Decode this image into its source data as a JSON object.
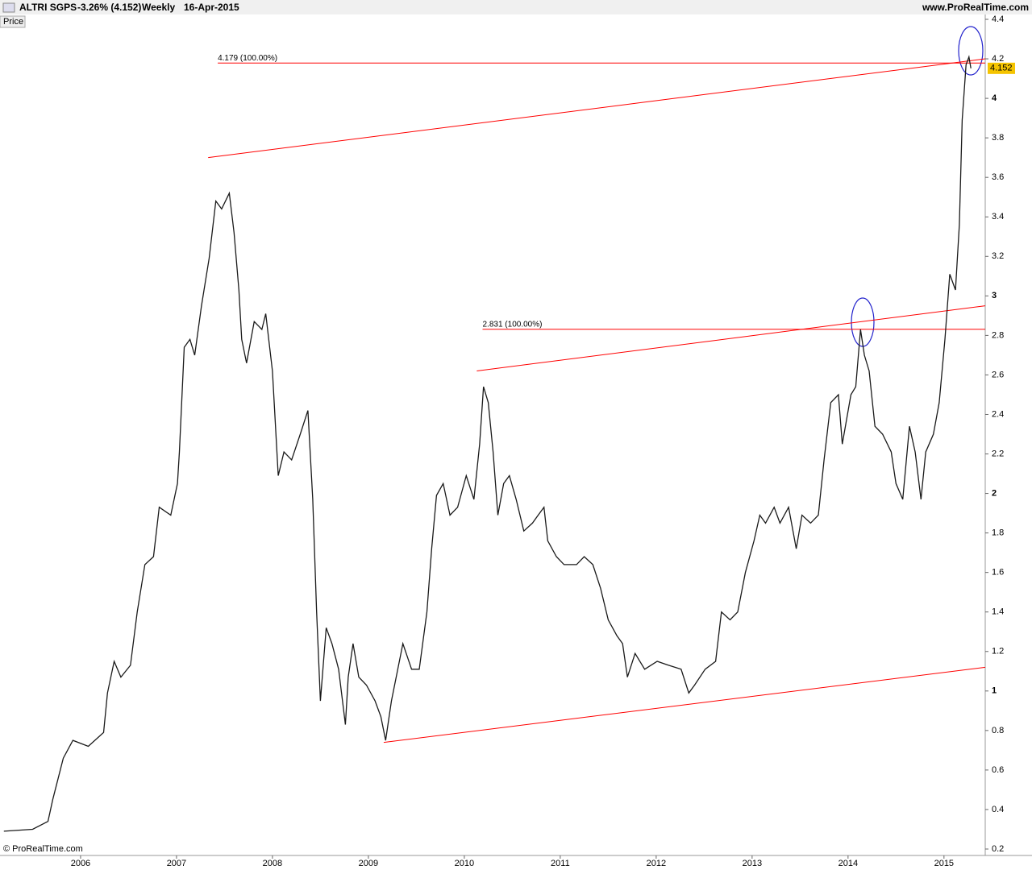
{
  "header": {
    "symbol": "ALTRI SGPS",
    "change": "-3.26% (4.152)",
    "period": "Weekly",
    "date": "16-Apr-2015",
    "site": "www.ProRealTime.com",
    "panel": "Price",
    "copyright": "© ProRealTime.com"
  },
  "chart_data": {
    "type": "line",
    "color": "#1a1a1a",
    "last_price": 4.152,
    "x": [
      2005.2,
      2005.5,
      2005.66,
      2005.71,
      2005.82,
      2005.92,
      2006.08,
      2006.24,
      2006.28,
      2006.35,
      2006.42,
      2006.52,
      2006.59,
      2006.67,
      2006.76,
      2006.82,
      2006.94,
      2007.01,
      2007.03,
      2007.08,
      2007.14,
      2007.19,
      2007.26,
      2007.34,
      2007.41,
      2007.47,
      2007.55,
      2007.6,
      2007.65,
      2007.68,
      2007.73,
      2007.81,
      2007.89,
      2007.93,
      2008.0,
      2008.06,
      2008.12,
      2008.2,
      2008.29,
      2008.37,
      2008.42,
      2008.46,
      2008.5,
      2008.56,
      2008.62,
      2008.69,
      2008.76,
      2008.79,
      2008.84,
      2008.9,
      2008.98,
      2009.07,
      2009.13,
      2009.18,
      2009.24,
      2009.29,
      2009.36,
      2009.45,
      2009.53,
      2009.61,
      2009.66,
      2009.71,
      2009.78,
      2009.85,
      2009.93,
      2010.02,
      2010.1,
      2010.16,
      2010.2,
      2010.25,
      2010.3,
      2010.35,
      2010.41,
      2010.47,
      2010.54,
      2010.62,
      2010.71,
      2010.77,
      2010.83,
      2010.87,
      2010.96,
      2011.04,
      2011.17,
      2011.25,
      2011.34,
      2011.42,
      2011.5,
      2011.59,
      2011.65,
      2011.7,
      2011.78,
      2011.88,
      2012.01,
      2012.13,
      2012.26,
      2012.34,
      2012.4,
      2012.51,
      2012.62,
      2012.68,
      2012.77,
      2012.85,
      2012.93,
      2013.02,
      2013.08,
      2013.14,
      2013.23,
      2013.29,
      2013.38,
      2013.46,
      2013.52,
      2013.61,
      2013.69,
      2013.75,
      2013.82,
      2013.9,
      2013.94,
      2014.03,
      2014.08,
      2014.13,
      2014.17,
      2014.22,
      2014.28,
      2014.36,
      2014.45,
      2014.5,
      2014.57,
      2014.64,
      2014.7,
      2014.76,
      2014.81,
      2014.89,
      2014.95,
      2015.01,
      2015.06,
      2015.12,
      2015.16,
      2015.19,
      2015.23,
      2015.26,
      2015.28
    ],
    "values": [
      0.29,
      0.3,
      0.34,
      0.45,
      0.66,
      0.75,
      0.72,
      0.79,
      0.99,
      1.15,
      1.07,
      1.13,
      1.4,
      1.64,
      1.68,
      1.93,
      1.89,
      2.05,
      2.21,
      2.74,
      2.78,
      2.7,
      2.95,
      3.19,
      3.48,
      3.44,
      3.52,
      3.32,
      3.03,
      2.78,
      2.66,
      2.87,
      2.83,
      2.91,
      2.62,
      2.09,
      2.21,
      2.17,
      2.3,
      2.42,
      1.97,
      1.4,
      0.95,
      1.32,
      1.24,
      1.11,
      0.83,
      1.07,
      1.24,
      1.07,
      1.03,
      0.95,
      0.87,
      0.75,
      0.95,
      1.07,
      1.24,
      1.11,
      1.11,
      1.4,
      1.72,
      1.99,
      2.05,
      1.89,
      1.93,
      2.09,
      1.97,
      2.25,
      2.54,
      2.46,
      2.21,
      1.89,
      2.05,
      2.09,
      1.97,
      1.81,
      1.85,
      1.89,
      1.93,
      1.76,
      1.68,
      1.64,
      1.64,
      1.68,
      1.64,
      1.52,
      1.36,
      1.28,
      1.24,
      1.07,
      1.19,
      1.11,
      1.15,
      1.13,
      1.11,
      0.99,
      1.03,
      1.11,
      1.15,
      1.4,
      1.36,
      1.4,
      1.6,
      1.76,
      1.89,
      1.85,
      1.93,
      1.85,
      1.93,
      1.72,
      1.89,
      1.85,
      1.89,
      2.17,
      2.46,
      2.5,
      2.25,
      2.5,
      2.54,
      2.83,
      2.7,
      2.62,
      2.34,
      2.3,
      2.21,
      2.05,
      1.97,
      2.34,
      2.21,
      1.97,
      2.21,
      2.3,
      2.46,
      2.78,
      3.11,
      3.03,
      3.36,
      3.89,
      4.17,
      4.21,
      4.152
    ],
    "xlim": [
      2005.16,
      2015.43
    ],
    "xticks": [
      2006,
      2007,
      2008,
      2009,
      2010,
      2011,
      2012,
      2013,
      2014,
      2015
    ],
    "ylim": [
      0.2,
      4.4
    ],
    "yticks": [
      0.2,
      0.4,
      0.6,
      0.8,
      1,
      1.2,
      1.4,
      1.6,
      1.8,
      2,
      2.2,
      2.4,
      2.6,
      2.8,
      3,
      3.2,
      3.4,
      3.6,
      3.8,
      4,
      4.2,
      4.4
    ],
    "trend_color": "#ff0000",
    "trendlines": [
      {
        "x": [
          2007.33,
          2015.43
        ],
        "y": [
          3.7,
          4.2
        ]
      },
      {
        "x": [
          2010.13,
          2015.43
        ],
        "y": [
          2.62,
          2.95
        ]
      },
      {
        "x": [
          2009.16,
          2015.43
        ],
        "y": [
          0.74,
          1.12
        ]
      }
    ],
    "levels": [
      {
        "value": 4.179,
        "label": "4.179 (100.00%)",
        "x_start": 2007.43
      },
      {
        "value": 2.831,
        "label": "2.831 (100.00%)",
        "x_start": 2010.19
      }
    ]
  }
}
